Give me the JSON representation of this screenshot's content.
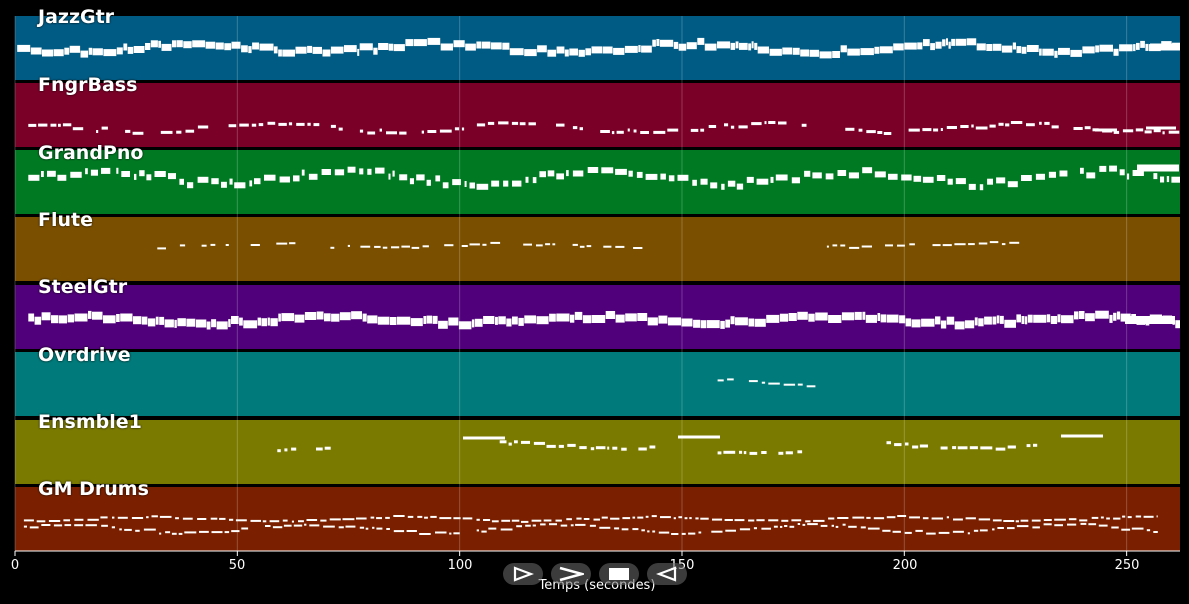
{
  "axis": {
    "xlabel": "Temps (secondes)",
    "ticks": [
      "0",
      "50",
      "100",
      "150",
      "200",
      "250"
    ],
    "tick_values": [
      0,
      50,
      100,
      150,
      200,
      250
    ],
    "xlim": [
      0,
      262
    ]
  },
  "tracks": [
    {
      "name": "JazzGtr",
      "color": "#005b84"
    },
    {
      "name": "FngrBass",
      "color": "#7a0028"
    },
    {
      "name": "GrandPno",
      "color": "#007a22"
    },
    {
      "name": "Flute",
      "color": "#7a4f00"
    },
    {
      "name": "SteelGtr",
      "color": "#50007a"
    },
    {
      "name": "Ovrdrive",
      "color": "#007a7a"
    },
    {
      "name": "Ensmble1",
      "color": "#7a7a00"
    },
    {
      "name": "GM Drums",
      "color": "#7a2000"
    }
  ],
  "transport": {
    "buttons": [
      {
        "name": "play-button",
        "icon": "play-outline-icon"
      },
      {
        "name": "forward-button",
        "icon": "chevron-right-icon"
      },
      {
        "name": "stop-button",
        "icon": "stop-icon"
      },
      {
        "name": "rewind-button",
        "icon": "play-left-outline-icon"
      }
    ]
  }
}
